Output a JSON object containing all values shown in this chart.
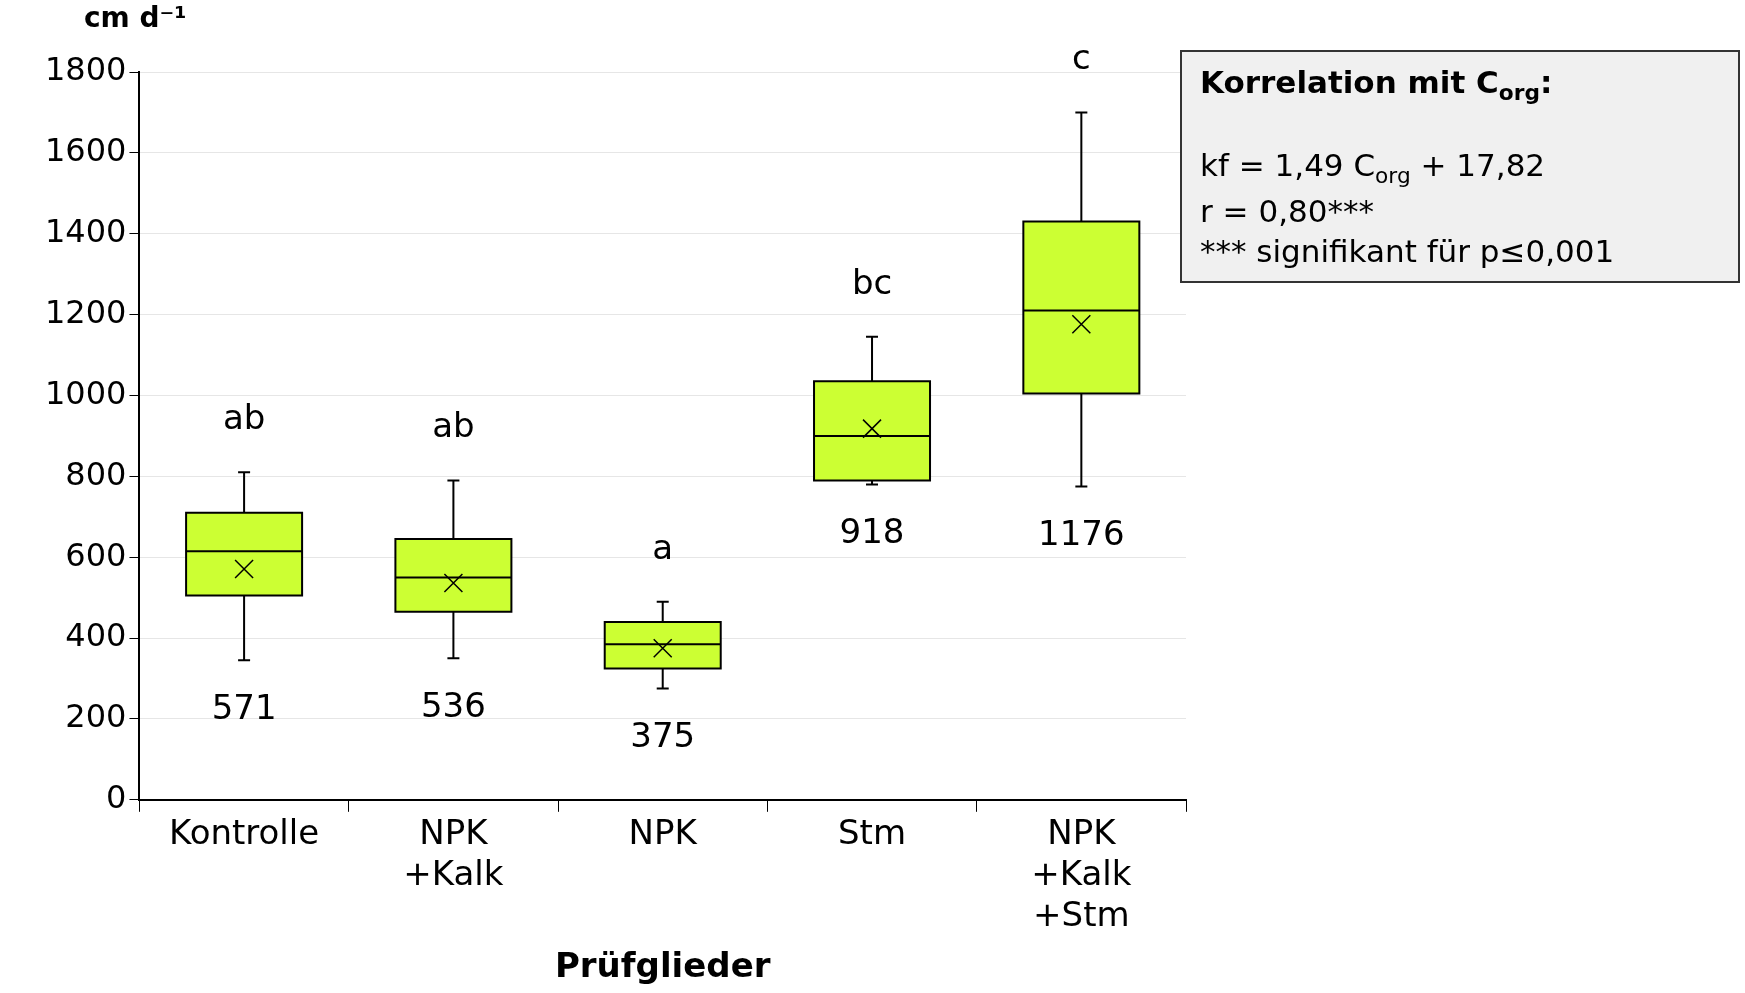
{
  "chart_data": {
    "type": "box",
    "xlabel": "Prüfglieder",
    "ylabel": "cm d⁻¹",
    "categories": [
      "Kontrolle",
      "NPK +Kalk",
      "NPK",
      "Stm",
      "NPK +Kalk +Stm"
    ],
    "color": "#ccff33",
    "boxes": [
      {
        "low": 345,
        "q1": 505,
        "median": 615,
        "q3": 710,
        "high": 810,
        "mean": 571
      },
      {
        "low": 350,
        "q1": 465,
        "median": 550,
        "q3": 645,
        "high": 790,
        "mean": 536
      },
      {
        "low": 275,
        "q1": 325,
        "median": 385,
        "q3": 440,
        "high": 490,
        "mean": 375
      },
      {
        "low": 780,
        "q1": 790,
        "median": 900,
        "q3": 1035,
        "high": 1145,
        "mean": 918
      },
      {
        "low": 775,
        "q1": 1005,
        "median": 1210,
        "q3": 1430,
        "high": 1700,
        "mean": 1176
      }
    ],
    "ylim": [
      0,
      1800
    ],
    "yticks": [
      0,
      200,
      400,
      600,
      800,
      1000,
      1200,
      1400,
      1600,
      1800
    ],
    "grid": "y",
    "marker": "cross",
    "legend": false,
    "annotations": [
      {
        "text": "ab",
        "x": "Kontrolle",
        "y": 810
      },
      {
        "text": "ab",
        "x": "NPK +Kalk",
        "y": 790
      },
      {
        "text": "a",
        "x": "NPK",
        "y": 490
      },
      {
        "text": "bc",
        "x": "Stm",
        "y": 1145
      },
      {
        "text": "c",
        "x": "NPK +Kalk +Stm",
        "y": 1700
      },
      {
        "text": "571",
        "x": "Kontrolle",
        "y": 345
      },
      {
        "text": "536",
        "x": "NPK +Kalk",
        "y": 350
      },
      {
        "text": "375",
        "x": "NPK",
        "y": 275
      },
      {
        "text": "918",
        "x": "Stm",
        "y": 780
      },
      {
        "text": "1176",
        "x": "NPK +Kalk +Stm",
        "y": 775
      },
      "Korrelation mit C$_{org}$:",
      "kf = 1,49 C$_{org}$ + 17,82",
      "r = 0,80***",
      "*** signifikant für p≤0,001"
    ]
  }
}
